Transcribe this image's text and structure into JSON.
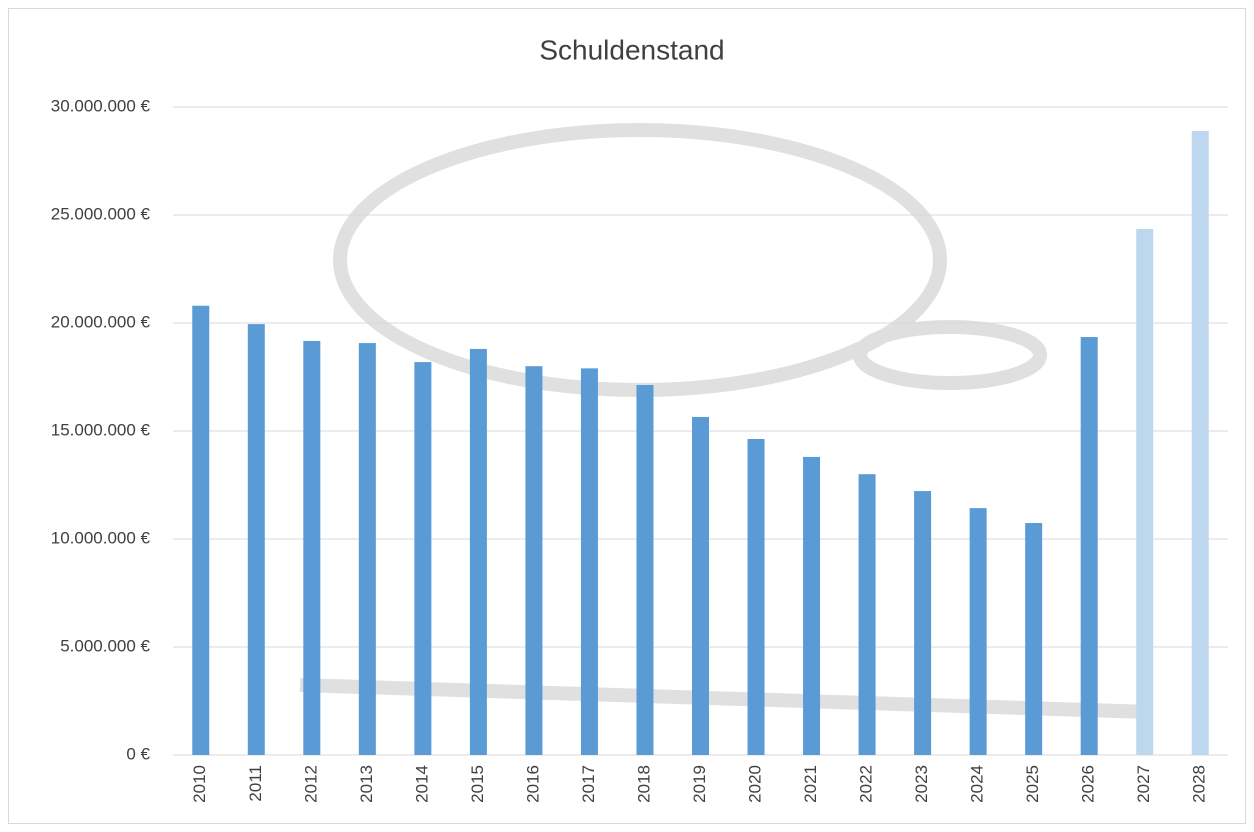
{
  "chart_data": {
    "type": "bar",
    "title": "Schuldenstand",
    "categories": [
      "2010",
      "2011",
      "2012",
      "2013",
      "2014",
      "2015",
      "2016",
      "2017",
      "2018",
      "2019",
      "2020",
      "2021",
      "2022",
      "2023",
      "2024",
      "2025",
      "2026",
      "2027",
      "2028"
    ],
    "values": [
      20800000,
      19950000,
      19170000,
      19070000,
      18190000,
      18800000,
      18000000,
      17900000,
      17130000,
      15650000,
      14630000,
      13800000,
      13000000,
      12220000,
      11430000,
      10740000,
      19350000,
      24350000,
      28890000
    ],
    "colors": [
      "#5b9bd5",
      "#5b9bd5",
      "#5b9bd5",
      "#5b9bd5",
      "#5b9bd5",
      "#5b9bd5",
      "#5b9bd5",
      "#5b9bd5",
      "#5b9bd5",
      "#5b9bd5",
      "#5b9bd5",
      "#5b9bd5",
      "#5b9bd5",
      "#5b9bd5",
      "#5b9bd5",
      "#5b9bd5",
      "#5b9bd5",
      "#bdd7ee",
      "#bdd7ee"
    ],
    "ylim": [
      0,
      30000000
    ],
    "yticks": [
      {
        "value": 0,
        "label": "0 €"
      },
      {
        "value": 5000000,
        "label": "5.000.000 €"
      },
      {
        "value": 10000000,
        "label": "10.000.000 €"
      },
      {
        "value": 15000000,
        "label": "15.000.000 €"
      },
      {
        "value": 20000000,
        "label": "20.000.000 €"
      },
      {
        "value": 25000000,
        "label": "25.000.000 €"
      },
      {
        "value": 30000000,
        "label": "30.000.000 €"
      }
    ],
    "grid": true
  }
}
